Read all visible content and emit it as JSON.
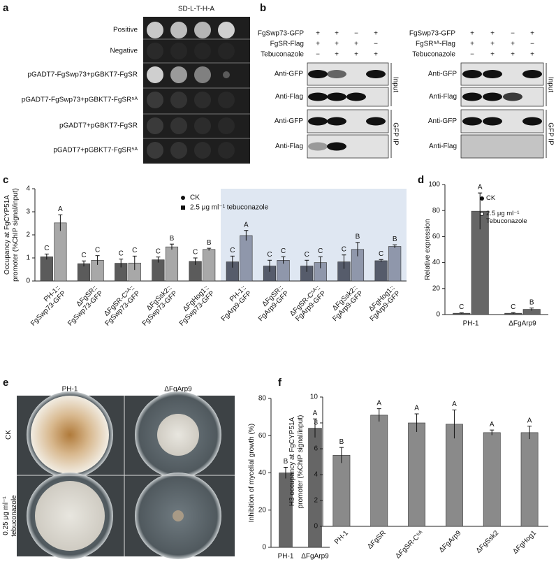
{
  "panel_labels": [
    "a",
    "b",
    "c",
    "d",
    "e",
    "f"
  ],
  "panel_a": {
    "title": "SD-L-T-H-A",
    "rows": [
      "Positive",
      "Negative",
      "pGADT7-FgSwp73+pGBKT7-FgSR",
      "pGADT7-FgSwp73+pGBKT7-FgSR⁵ᴬ",
      "pGADT7+pGBKT7-FgSR",
      "pGADT7+pGBKT7-FgSR⁵ᴬ"
    ]
  },
  "panel_b": {
    "blots": [
      {
        "conditions": [
          {
            "label": "FgSwp73-GFP",
            "signs": [
              "+",
              "+",
              "−",
              "+"
            ]
          },
          {
            "label": "FgSR-Flag",
            "signs": [
              "+",
              "+",
              "+",
              "−"
            ]
          },
          {
            "label": "Tebuconazole",
            "signs": [
              "−",
              "+",
              "+",
              "+"
            ]
          }
        ],
        "bands": [
          "Anti-GFP",
          "Anti-Flag",
          "Anti-GFP",
          "Anti-Flag"
        ],
        "groups": [
          "Input",
          "GFP IP"
        ]
      },
      {
        "conditions": [
          {
            "label": "FgSwp73-GFP",
            "signs": [
              "+",
              "+",
              "−",
              "+"
            ]
          },
          {
            "label": "FgSR⁵ᴬ-Flag",
            "signs": [
              "+",
              "+",
              "+",
              "−"
            ]
          },
          {
            "label": "Tebuconazole",
            "signs": [
              "−",
              "+",
              "+",
              "+"
            ]
          }
        ],
        "bands": [
          "Anti-GFP",
          "Anti-Flag",
          "Anti-GFP",
          "Anti-Flag"
        ],
        "groups": [
          "Input",
          "GFP IP"
        ]
      }
    ]
  },
  "panel_d": {
    "columns": [
      "PH-1",
      "ΔFgArp9"
    ],
    "rows": [
      [
        "CK"
      ],
      [
        "0.25 μg ml⁻¹",
        "tebuconazole"
      ]
    ]
  },
  "chart_data": [
    {
      "type": "bar",
      "ylabel": [
        "Occupancy at FgCYP51A",
        "promoter (%ChIP signal/input)"
      ],
      "categories": [
        [
          "PH-1::",
          "FgSwp73-GFP"
        ],
        [
          "ΔFgSR::",
          "FgSwp73-GFP"
        ],
        [
          "ΔFgSR-C⁵ᴬ::",
          "FgSwp73-GFP"
        ],
        [
          "ΔFgSsk2::",
          "FgSwp73-GFP"
        ],
        [
          "ΔFgHog1::",
          "FgSwp73-GFP"
        ],
        [
          "PH-1::",
          "FgArp9-GFP"
        ],
        [
          "ΔFgSR::",
          "FgArp9-GFP"
        ],
        [
          "ΔFgSR-C⁵ᴬ::",
          "FgArp9-GFP"
        ],
        [
          "ΔFgSsk2::",
          "FgArp9-GFP"
        ],
        [
          "ΔFgHog1::",
          "FgArp9-GFP"
        ]
      ],
      "series": [
        {
          "name": "CK",
          "colors": [
            "#5b5b5b",
            "#5b5b5b",
            "#5b5b5b",
            "#5b5b5b",
            "#5b5b5b",
            "#565c6b",
            "#565c6b",
            "#565c6b",
            "#565c6b",
            "#565c6b"
          ],
          "values": [
            1.05,
            0.75,
            0.77,
            0.92,
            0.85,
            0.83,
            0.65,
            0.65,
            0.83,
            0.88
          ],
          "errors": [
            0.12,
            0.12,
            0.18,
            0.12,
            0.15,
            0.25,
            0.25,
            0.25,
            0.3,
            0.05
          ],
          "letters": [
            "C",
            "C",
            "C",
            "C",
            "C",
            "C",
            "C",
            "C",
            "C",
            "C"
          ]
        },
        {
          "name": "2.5 μg ml⁻¹ tebuconazole",
          "colors": [
            "#a8a8a8",
            "#a8a8a8",
            "#a8a8a8",
            "#a8a8a8",
            "#a8a8a8",
            "#8f97ab",
            "#8f97ab",
            "#8f97ab",
            "#8f97ab",
            "#8f97ab"
          ],
          "values": [
            2.52,
            0.9,
            0.78,
            1.48,
            1.37,
            1.97,
            0.9,
            0.8,
            1.37,
            1.5
          ],
          "errors": [
            0.35,
            0.2,
            0.3,
            0.12,
            0.05,
            0.22,
            0.15,
            0.25,
            0.3,
            0.07
          ],
          "letters": [
            "A",
            "C",
            "C",
            "B",
            "B",
            "A",
            "C",
            "C",
            "B",
            "B"
          ]
        }
      ],
      "ylim": [
        0,
        4
      ],
      "yticks": [
        0,
        1,
        2,
        3,
        4
      ]
    },
    {
      "type": "bar",
      "ylabel": [
        "Relative expression"
      ],
      "categories": [
        "PH-1",
        "ΔFgArp9"
      ],
      "series": [
        {
          "name": "CK",
          "colors": [
            "#555555",
            "#555555"
          ],
          "values": [
            1,
            1
          ],
          "errors": [
            0.3,
            0.5
          ],
          "letters": [
            "C",
            "C"
          ]
        },
        {
          "name": "2.5 μg ml⁻¹ Tebuconazole",
          "colors": [
            "#666666",
            "#666666"
          ],
          "values": [
            79.5,
            4
          ],
          "errors": [
            14,
            1
          ],
          "letters": [
            "A",
            "B"
          ]
        }
      ],
      "ylim": [
        0,
        100
      ],
      "yticks": [
        0,
        20,
        40,
        60,
        80,
        100
      ]
    },
    {
      "type": "bar",
      "ylabel": [
        "Inhibition of mycelial growth (%)"
      ],
      "categories": [
        "PH-1",
        "ΔFgArp9"
      ],
      "series": [
        {
          "colors": [
            "#666666",
            "#666666"
          ],
          "values": [
            40,
            64
          ],
          "errors": [
            3,
            5
          ],
          "letters": [
            "B",
            "A"
          ]
        }
      ],
      "ylim": [
        0,
        80
      ],
      "yticks": [
        0,
        20,
        40,
        60,
        80
      ]
    },
    {
      "type": "bar",
      "ylabel": [
        "H3 occupancy at FgCYP51A",
        "promoter (%ChIP signal/input)"
      ],
      "categories": [
        "PH-1",
        "ΔFgSR",
        "ΔFgSR-C⁵ᴬ",
        "ΔFgArp9",
        "ΔFgSsk2",
        "ΔFgHog1"
      ],
      "series": [
        {
          "colors": [
            "#8a8a8a",
            "#8a8a8a",
            "#8a8a8a",
            "#8a8a8a",
            "#8a8a8a",
            "#8a8a8a"
          ],
          "values": [
            5.5,
            8.6,
            8.0,
            7.9,
            7.25,
            7.25
          ],
          "errors": [
            0.6,
            0.5,
            0.7,
            1.1,
            0.2,
            0.5
          ],
          "letters": [
            "B",
            "A",
            "A",
            "A",
            "A",
            "A"
          ]
        }
      ],
      "ylim": [
        0,
        10
      ],
      "yticks": [
        0,
        2,
        4,
        6,
        8,
        10
      ]
    }
  ]
}
